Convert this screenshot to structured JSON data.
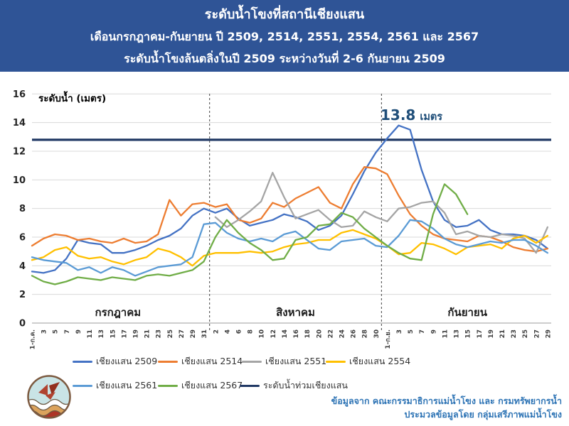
{
  "header": {
    "line1": "ระดับน้ำโขงที่สถานีเชียงแสน",
    "line2": "เดือนกรกฎาคม-กันยายน ปี 2509, 2514, 2551, 2554, 2561 และ 2567",
    "line3": "ระดับน้ำโขงล้นตลิ่งในปี 2509 ระหว่างวันที่ 2-6 กันยายน 2509"
  },
  "chart_data": {
    "type": "line",
    "ylabel": "ระดับน้ำ (เมตร)",
    "ylim": [
      0,
      16
    ],
    "ytick_step": 2,
    "grid": true,
    "legend_position": "bottom",
    "x_tick_labels": [
      "1-ก.ค.",
      "3",
      "5",
      "7",
      "9",
      "11",
      "13",
      "15",
      "17",
      "19",
      "21",
      "23",
      "25",
      "27",
      "29",
      "31",
      "2",
      "4",
      "6",
      "8",
      "10",
      "12",
      "14",
      "16",
      "18",
      "20",
      "22",
      "24",
      "26",
      "28",
      "30",
      "1-ก.ย.",
      "3",
      "5",
      "7",
      "9",
      "11",
      "13",
      "15",
      "17",
      "19",
      "21",
      "23",
      "25",
      "27",
      "29"
    ],
    "month_tick_counts": [
      16,
      15,
      15
    ],
    "month_labels": [
      "กรกฎาคม",
      "สิงหาคม",
      "กันยายน"
    ],
    "annotation": {
      "value": "13.8",
      "unit": "เมตร",
      "color": "#1F4E79"
    },
    "flood_level": 12.8,
    "series": [
      {
        "name": "เชียงแสน 2509",
        "color": "#4472C4",
        "values": [
          3.6,
          3.5,
          3.7,
          4.5,
          5.8,
          5.6,
          5.5,
          4.9,
          4.9,
          5.1,
          5.4,
          5.8,
          6.1,
          6.6,
          7.5,
          8.0,
          7.7,
          8.0,
          7.3,
          6.8,
          7.0,
          7.2,
          7.6,
          7.4,
          7.1,
          6.5,
          6.8,
          7.5,
          9.0,
          10.6,
          11.9,
          12.9,
          13.8,
          13.5,
          10.7,
          8.5,
          7.2,
          6.7,
          6.8,
          7.2,
          6.5,
          6.2,
          6.2,
          6.1,
          5.8,
          5.2
        ]
      },
      {
        "name": "เชียงแสน 2514",
        "color": "#ED7D31",
        "values": [
          5.4,
          5.9,
          6.2,
          6.1,
          5.8,
          5.9,
          5.7,
          5.6,
          5.9,
          5.6,
          5.7,
          6.2,
          8.6,
          7.5,
          8.3,
          8.4,
          8.1,
          8.3,
          7.2,
          7.0,
          7.3,
          8.4,
          8.1,
          8.7,
          9.1,
          9.5,
          8.4,
          8.0,
          9.7,
          10.9,
          10.8,
          10.4,
          8.9,
          7.6,
          6.8,
          6.2,
          5.9,
          5.8,
          5.7,
          6.1,
          6.0,
          5.7,
          5.3,
          5.1,
          5.0,
          5.2
        ]
      },
      {
        "name": "เชียงแสน 2551",
        "color": "#A5A5A5",
        "values": [
          null,
          null,
          null,
          null,
          null,
          null,
          null,
          null,
          null,
          null,
          null,
          null,
          null,
          null,
          null,
          null,
          7.4,
          6.7,
          7.2,
          7.8,
          8.5,
          10.5,
          8.8,
          7.3,
          7.6,
          7.9,
          7.2,
          6.7,
          6.8,
          7.8,
          7.4,
          7.1,
          8.0,
          8.1,
          8.4,
          8.5,
          7.7,
          6.2,
          6.4,
          6.1,
          6.0,
          6.2,
          6.1,
          5.9,
          4.9,
          6.7
        ]
      },
      {
        "name": "เชียงแสน 2554",
        "color": "#FFC000",
        "values": [
          4.4,
          4.6,
          5.1,
          5.3,
          4.7,
          4.5,
          4.6,
          4.3,
          4.1,
          4.4,
          4.6,
          5.2,
          5.0,
          4.6,
          4.0,
          4.7,
          4.9,
          4.9,
          4.9,
          5.0,
          4.9,
          5.0,
          5.3,
          5.5,
          5.6,
          5.8,
          5.8,
          6.3,
          6.5,
          6.2,
          5.9,
          5.4,
          4.8,
          4.9,
          5.6,
          5.5,
          5.2,
          4.8,
          5.3,
          5.4,
          5.5,
          5.2,
          5.9,
          6.1,
          5.6,
          6.1
        ]
      },
      {
        "name": "เชียงแสน 2561",
        "color": "#5B9BD5",
        "values": [
          4.6,
          4.4,
          4.3,
          4.2,
          3.7,
          3.9,
          3.5,
          3.9,
          3.7,
          3.3,
          3.6,
          3.9,
          4.0,
          4.1,
          4.6,
          6.9,
          7.0,
          6.3,
          5.9,
          5.7,
          5.9,
          5.7,
          6.2,
          6.4,
          5.8,
          5.2,
          5.1,
          5.7,
          5.8,
          5.9,
          5.4,
          5.3,
          6.1,
          7.2,
          7.1,
          6.6,
          5.9,
          5.5,
          5.3,
          5.5,
          5.7,
          5.6,
          5.8,
          5.8,
          5.4,
          4.9
        ]
      },
      {
        "name": "เชียงแสน 2567",
        "color": "#70AD47",
        "values": [
          3.3,
          2.9,
          2.7,
          2.9,
          3.2,
          3.1,
          3.0,
          3.2,
          3.1,
          3.0,
          3.3,
          3.4,
          3.3,
          3.5,
          3.7,
          4.3,
          6.0,
          7.2,
          6.3,
          5.6,
          5.1,
          4.4,
          4.5,
          5.8,
          6.0,
          6.8,
          6.9,
          7.7,
          7.4,
          6.6,
          6.0,
          5.4,
          4.9,
          4.5,
          4.4,
          7.6,
          9.7,
          9.0,
          7.6,
          null,
          null,
          null,
          null,
          null,
          null,
          null
        ]
      },
      {
        "name": "ระดับน้ำท่วมเชียงแสน",
        "color": "#203864",
        "type": "hline",
        "value": 12.8
      }
    ]
  },
  "footer": {
    "line1": "ข้อมูลจาก คณะกรรมาธิการแม่น้ำโขง และ กรมทรัพยากรน้ำ",
    "line2": "ประมวลข้อมูลโดย กลุ่มเสรีภาพแม่น้ำโขง"
  }
}
